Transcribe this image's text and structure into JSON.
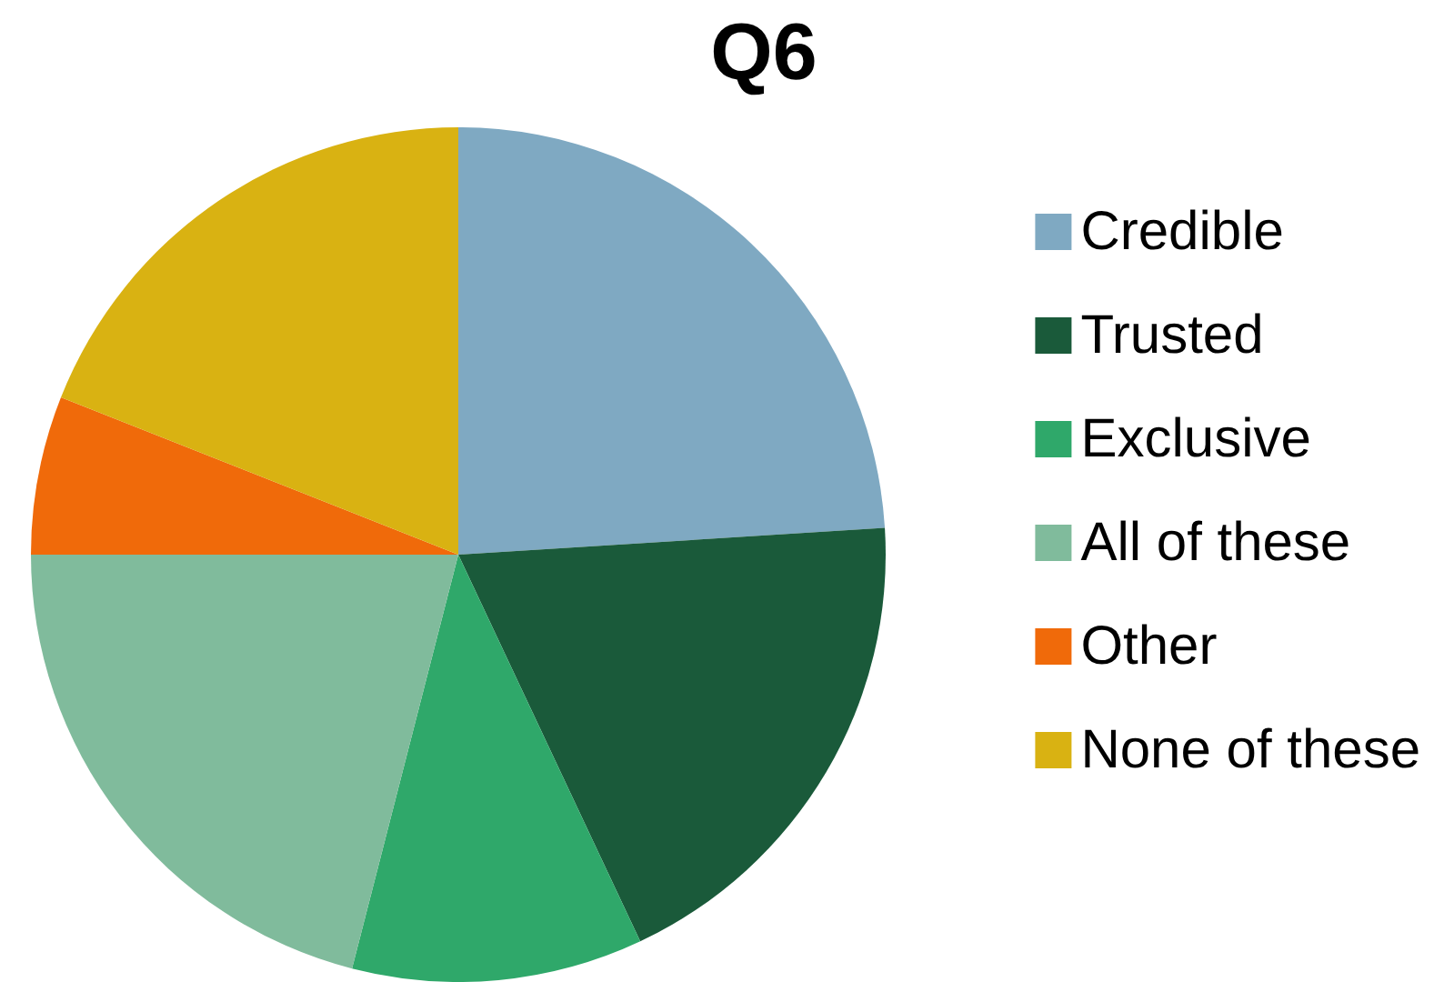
{
  "chart_data": {
    "type": "pie",
    "title": "Q6",
    "categories": [
      "Credible",
      "Trusted",
      "Exclusive",
      "All of these",
      "Other",
      "None of these"
    ],
    "values": [
      24,
      19,
      11,
      21,
      6,
      19
    ],
    "colors": [
      "#7fa9c2",
      "#1a5a3a",
      "#2fa86a",
      "#80bb9c",
      "#f06a0a",
      "#d9b212"
    ],
    "legend": "right"
  }
}
